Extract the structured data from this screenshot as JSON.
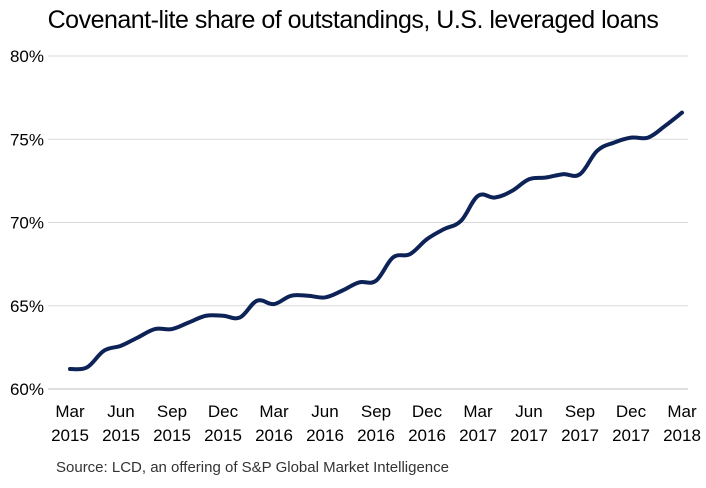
{
  "chart_data": {
    "type": "line",
    "title": "Covenant-lite share of outstandings, U.S. leveraged loans",
    "xlabel": "",
    "ylabel": "",
    "ylim": [
      60,
      80
    ],
    "yticks": [
      60,
      65,
      70,
      75,
      80
    ],
    "ytick_labels": [
      "60%",
      "65%",
      "70%",
      "75%",
      "80%"
    ],
    "grid": true,
    "legend": "none",
    "line_color": "#0d2257",
    "x_tick_labels": [
      {
        "month": "Mar",
        "year": "2015"
      },
      {
        "month": "Jun",
        "year": "2015"
      },
      {
        "month": "Sep",
        "year": "2015"
      },
      {
        "month": "Dec",
        "year": "2015"
      },
      {
        "month": "Mar",
        "year": "2016"
      },
      {
        "month": "Jun",
        "year": "2016"
      },
      {
        "month": "Sep",
        "year": "2016"
      },
      {
        "month": "Dec",
        "year": "2016"
      },
      {
        "month": "Mar",
        "year": "2017"
      },
      {
        "month": "Jun",
        "year": "2017"
      },
      {
        "month": "Sep",
        "year": "2017"
      },
      {
        "month": "Dec",
        "year": "2017"
      },
      {
        "month": "Mar",
        "year": "2018"
      }
    ],
    "series": [
      {
        "x": [
          "2015-03",
          "2015-04",
          "2015-05",
          "2015-06",
          "2015-07",
          "2015-08",
          "2015-09",
          "2015-10",
          "2015-11",
          "2015-12",
          "2016-01",
          "2016-02",
          "2016-03",
          "2016-04",
          "2016-05",
          "2016-06",
          "2016-07",
          "2016-08",
          "2016-09",
          "2016-10",
          "2016-11",
          "2016-12",
          "2017-01",
          "2017-02",
          "2017-03",
          "2017-04",
          "2017-05",
          "2017-06",
          "2017-07",
          "2017-08",
          "2017-09",
          "2017-10",
          "2017-11",
          "2017-12",
          "2018-01",
          "2018-02",
          "2018-03"
        ],
        "values": [
          61.2,
          61.3,
          62.3,
          62.6,
          63.1,
          63.6,
          63.6,
          64.0,
          64.4,
          64.4,
          64.3,
          65.3,
          65.1,
          65.6,
          65.6,
          65.5,
          65.9,
          66.4,
          66.5,
          67.9,
          68.1,
          69.0,
          69.6,
          70.1,
          71.6,
          71.5,
          71.9,
          72.6,
          72.7,
          72.9,
          72.9,
          74.3,
          74.8,
          75.1,
          75.1,
          75.8,
          76.6
        ]
      }
    ]
  },
  "footer": {
    "source": "Source: LCD, an offering of S&P Global Market Intelligence"
  }
}
